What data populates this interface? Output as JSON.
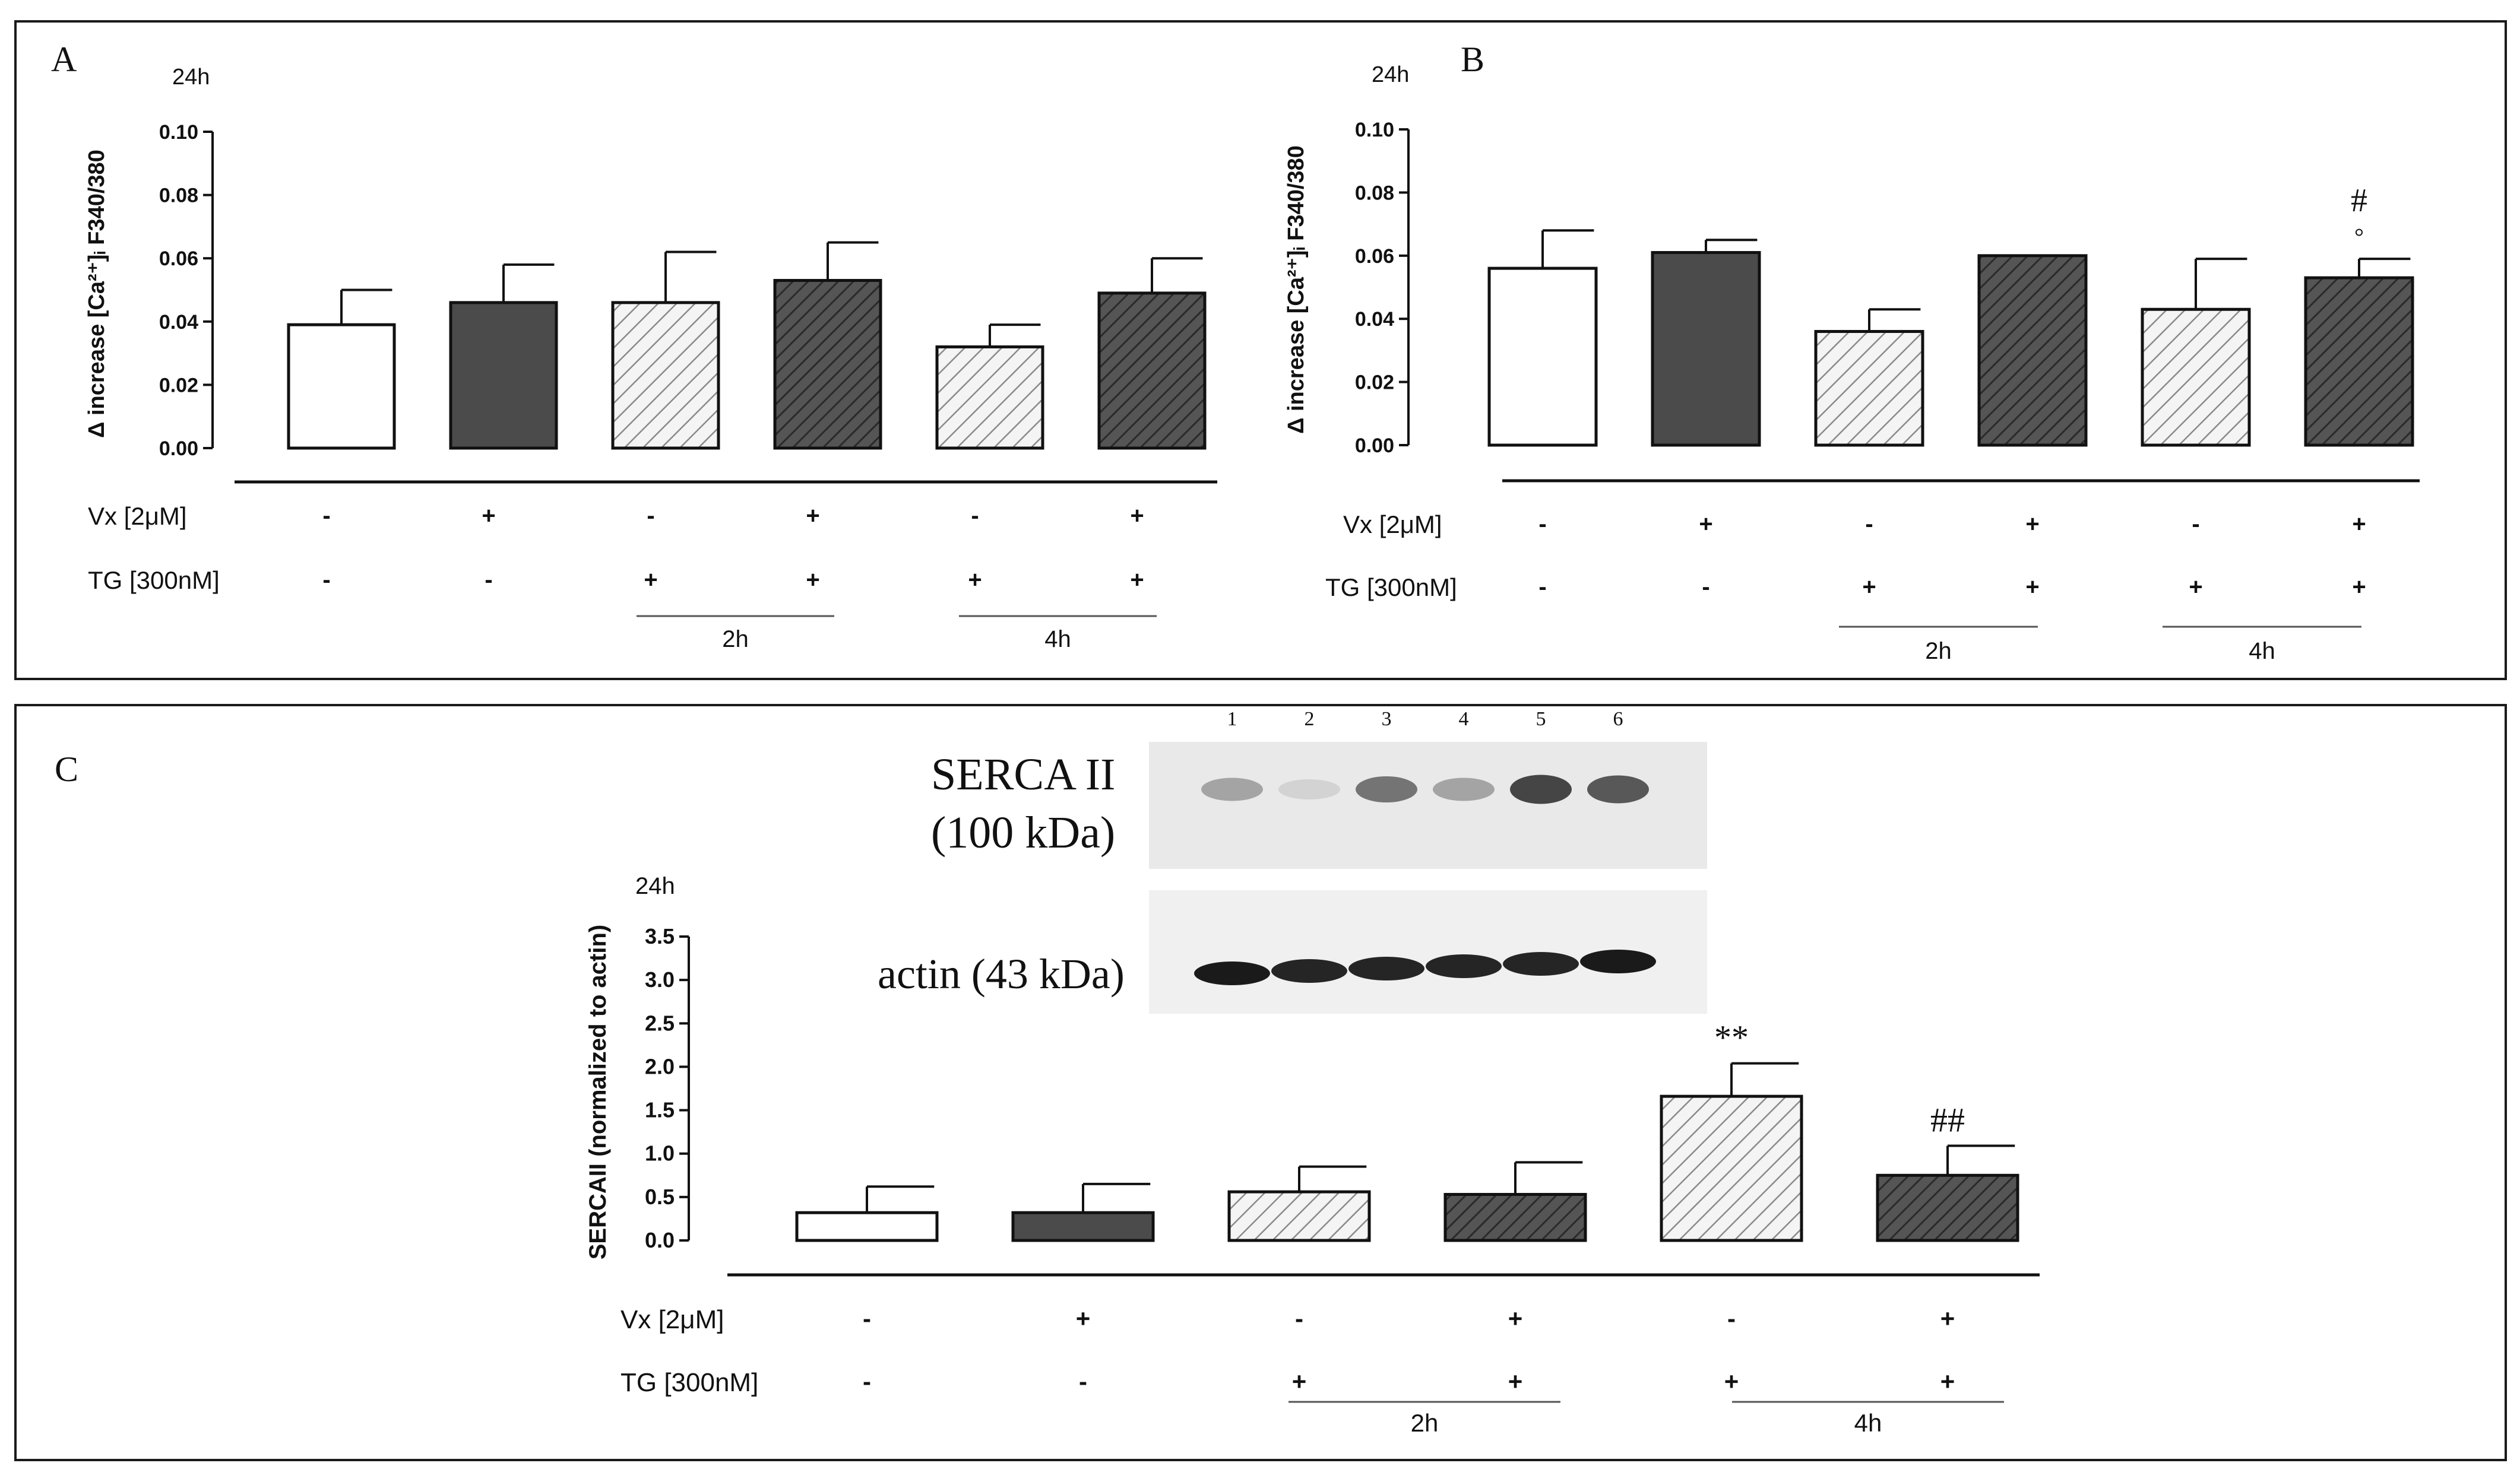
{
  "colors": {
    "open": "#ffffff",
    "dark": "#4b4b4b",
    "hatch_light": "#f4f4f4",
    "hatch_line": "#8a8a8a",
    "hatch_dark_line": "#2a2a2a",
    "ink": "#111111",
    "blot_bg": "#eeeeee"
  },
  "chart_data": [
    {
      "panel": "A",
      "type": "bar",
      "title": "24h",
      "ylabel": "Δ increase [Ca²⁺]ᵢ F340/380",
      "ylim": [
        0,
        0.1
      ],
      "yticks": [
        "0.00",
        "0.02",
        "0.04",
        "0.06",
        "0.08",
        "0.10"
      ],
      "values": [
        0.039,
        0.046,
        0.046,
        0.053,
        0.032,
        0.049
      ],
      "errors": [
        0.011,
        0.012,
        0.016,
        0.012,
        0.007,
        0.011
      ],
      "styles": [
        "open",
        "dark",
        "hatch-light",
        "hatch-dark",
        "hatch-light",
        "hatch-dark"
      ],
      "vx_label": "Vx [2μM]",
      "vx": [
        "-",
        "+",
        "-",
        "+",
        "-",
        "+"
      ],
      "tg_label": "TG [300nM]",
      "tg": [
        "-",
        "-",
        "+",
        "+",
        "+",
        "+"
      ],
      "groups": [
        "2h",
        "4h"
      ],
      "annotations": [
        "",
        "",
        "",
        "",
        "",
        ""
      ]
    },
    {
      "panel": "B",
      "type": "bar",
      "title": "24h",
      "ylabel": "Δ increase [Ca²⁺]ᵢ F340/380",
      "ylim": [
        0,
        0.1
      ],
      "yticks": [
        "0.00",
        "0.02",
        "0.04",
        "0.06",
        "0.08",
        "0.10"
      ],
      "values": [
        0.056,
        0.061,
        0.036,
        0.06,
        0.043,
        0.053
      ],
      "errors": [
        0.012,
        0.004,
        0.007,
        0.0,
        0.016,
        0.006
      ],
      "styles": [
        "open",
        "dark",
        "hatch-light",
        "hatch-dark",
        "hatch-light",
        "hatch-dark"
      ],
      "vx_label": "Vx [2μM]",
      "vx": [
        "-",
        "+",
        "-",
        "+",
        "-",
        "+"
      ],
      "tg_label": "TG [300nM]",
      "tg": [
        "-",
        "-",
        "+",
        "+",
        "+",
        "+"
      ],
      "groups": [
        "2h",
        "4h"
      ],
      "annotations": [
        "",
        "",
        "",
        "",
        "",
        "°"
      ],
      "annotations_top": [
        "",
        "",
        "",
        "",
        "",
        "#"
      ]
    },
    {
      "panel": "C",
      "type": "bar",
      "title": "24h",
      "ylabel": "SERCAII (normalized to actin)",
      "ylim": [
        0,
        3.5
      ],
      "yticks": [
        "0.0",
        "0.5",
        "1.0",
        "1.5",
        "2.0",
        "2.5",
        "3.0",
        "3.5"
      ],
      "values": [
        0.32,
        0.32,
        0.56,
        0.53,
        1.66,
        0.75
      ],
      "errors": [
        0.3,
        0.33,
        0.29,
        0.37,
        0.38,
        0.34
      ],
      "styles": [
        "open",
        "dark",
        "hatch-light",
        "hatch-dark",
        "hatch-light",
        "hatch-dark"
      ],
      "vx_label": "Vx [2μM]",
      "vx": [
        "-",
        "+",
        "-",
        "+",
        "-",
        "+"
      ],
      "tg_label": "TG [300nM]",
      "tg": [
        "-",
        "-",
        "+",
        "+",
        "+",
        "+"
      ],
      "groups": [
        "2h",
        "4h"
      ],
      "annotations": [
        "",
        "",
        "",
        "",
        "**",
        "##"
      ]
    }
  ],
  "blot": {
    "lanes": [
      "1",
      "2",
      "3",
      "4",
      "5",
      "6"
    ],
    "serca_label_1": "SERCA II",
    "serca_label_2": "(100 kDa)",
    "actin_label": "actin (43 kDa)",
    "serca_intensity": [
      0.35,
      0.1,
      0.6,
      0.35,
      0.85,
      0.75
    ],
    "actin_intensity": [
      0.95,
      0.9,
      0.9,
      0.9,
      0.9,
      0.95
    ]
  }
}
